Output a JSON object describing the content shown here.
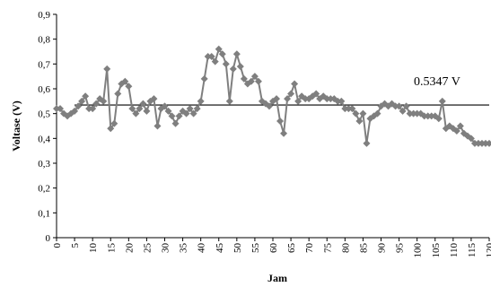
{
  "chart_data": {
    "type": "line",
    "xlabel": "Jam",
    "ylabel": "Voltase (V)",
    "xlim": [
      0,
      120
    ],
    "ylim": [
      0,
      0.9
    ],
    "y_ticks": [
      "0",
      "0,1",
      "0,2",
      "0,3",
      "0,4",
      "0,5",
      "0,6",
      "0,7",
      "0,8",
      "0,9"
    ],
    "x_ticks": [
      "0",
      "5",
      "10",
      "15",
      "20",
      "25",
      "30",
      "35",
      "40",
      "45",
      "50",
      "55",
      "60",
      "65",
      "70",
      "75",
      "80",
      "85",
      "90",
      "95",
      "100",
      "105",
      "110",
      "115",
      "120"
    ],
    "x_ticks_visible": [
      "0",
      "5",
      "10",
      "15",
      "20",
      "25",
      "30",
      "35",
      "40",
      "45",
      "50",
      "55",
      "60",
      "65",
      "70",
      "75",
      "80",
      "85",
      "90",
      "95",
      "100",
      "105",
      "110",
      "115",
      "120"
    ],
    "series_color": "#7f7f7f",
    "reference_line": {
      "value": 0.5347,
      "label": "0.5347 V",
      "color": "#000000"
    },
    "grid": false,
    "series": [
      {
        "x": [
          0,
          1,
          2,
          3,
          4,
          5,
          6,
          7,
          8,
          9,
          10,
          11,
          12,
          13,
          14,
          15,
          16,
          17,
          18,
          19,
          20,
          21,
          22,
          23,
          24,
          25,
          26,
          27,
          28,
          29,
          30,
          31,
          32,
          33,
          34,
          35,
          36,
          37,
          38,
          39,
          40,
          41,
          42,
          43,
          44,
          45,
          46,
          47,
          48,
          49,
          50,
          51,
          52,
          53,
          54,
          55,
          56,
          57,
          58,
          59,
          60,
          61,
          62,
          63,
          64,
          65,
          66,
          67,
          68,
          69,
          70,
          71,
          72,
          73,
          74,
          75,
          76,
          77,
          78,
          79,
          80,
          81,
          82,
          83,
          84,
          85,
          86,
          87,
          88,
          89,
          90,
          91,
          92,
          93,
          94,
          95,
          96,
          97,
          98,
          99,
          100,
          101,
          102,
          103,
          104,
          105,
          106,
          107,
          108,
          109,
          110,
          111,
          112,
          113,
          114,
          115,
          116,
          117,
          118,
          119,
          120
        ],
        "values": [
          0.52,
          0.52,
          0.5,
          0.49,
          0.5,
          0.51,
          0.53,
          0.55,
          0.57,
          0.52,
          0.52,
          0.54,
          0.56,
          0.55,
          0.68,
          0.44,
          0.46,
          0.58,
          0.62,
          0.63,
          0.61,
          0.52,
          0.5,
          0.52,
          0.54,
          0.51,
          0.55,
          0.56,
          0.45,
          0.52,
          0.53,
          0.51,
          0.49,
          0.46,
          0.49,
          0.51,
          0.5,
          0.52,
          0.5,
          0.52,
          0.55,
          0.64,
          0.73,
          0.73,
          0.71,
          0.76,
          0.74,
          0.7,
          0.55,
          0.68,
          0.74,
          0.69,
          0.64,
          0.62,
          0.63,
          0.65,
          0.63,
          0.55,
          0.54,
          0.53,
          0.55,
          0.56,
          0.47,
          0.42,
          0.56,
          0.58,
          0.62,
          0.55,
          0.57,
          0.56,
          0.56,
          0.57,
          0.58,
          0.56,
          0.57,
          0.56,
          0.56,
          0.56,
          0.55,
          0.55,
          0.52,
          0.52,
          0.52,
          0.5,
          0.47,
          0.5,
          0.38,
          0.48,
          0.49,
          0.5,
          0.53,
          0.54,
          0.53,
          0.54,
          0.53,
          0.53,
          0.51,
          0.53,
          0.5,
          0.5,
          0.5,
          0.5,
          0.49,
          0.49,
          0.49,
          0.49,
          0.48,
          0.55,
          0.44,
          0.45,
          0.44,
          0.43,
          0.45,
          0.42,
          0.41,
          0.4,
          0.38,
          0.38,
          0.38,
          0.38,
          0.38
        ]
      }
    ]
  }
}
